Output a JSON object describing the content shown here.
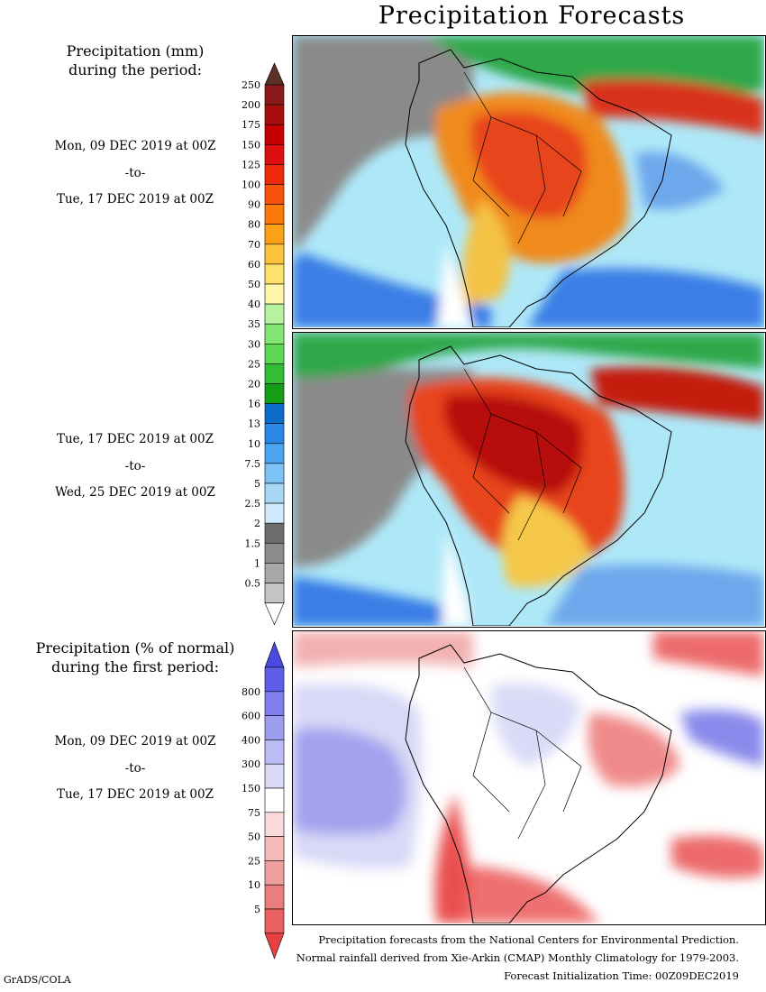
{
  "title": "Precipitation Forecasts",
  "legend_mm": {
    "header_line1": "Precipitation (mm)",
    "header_line2": "during the period:",
    "labels": [
      "250",
      "200",
      "175",
      "150",
      "125",
      "100",
      "90",
      "80",
      "70",
      "60",
      "50",
      "40",
      "35",
      "30",
      "25",
      "20",
      "16",
      "13",
      "10",
      "7.5",
      "5",
      "2.5",
      "2",
      "1.5",
      "1",
      "0.5"
    ],
    "colors": [
      "#8a1a1a",
      "#a80e0e",
      "#c40000",
      "#dd0f0f",
      "#ef2a0a",
      "#f5520a",
      "#fb7a0a",
      "#fca018",
      "#fcc23c",
      "#fde070",
      "#fef6a8",
      "#b6f2a0",
      "#86e674",
      "#5ed854",
      "#32bd32",
      "#159e15",
      "#0d6cc8",
      "#2a88e4",
      "#4ca4f0",
      "#7cc2f4",
      "#a8d8f6",
      "#cfeafa",
      "#6e6e6e",
      "#8c8c8c",
      "#a8a8a8",
      "#c4c4c4"
    ],
    "top_arrow_color": "#5b3027",
    "bottom_arrow_color": "#ffffff"
  },
  "legend_pct": {
    "header_line1": "Precipitation (% of normal)",
    "header_line2": "during the first period:",
    "labels": [
      "800",
      "600",
      "400",
      "300",
      "150",
      "75",
      "50",
      "25",
      "10",
      "5"
    ],
    "colors": [
      "#5e5ee8",
      "#7e7eec",
      "#9e9ef0",
      "#bcbcf4",
      "#dadaf8",
      "#ffffff",
      "#fadada",
      "#f6bcbc",
      "#f09e9e",
      "#ea7e7e",
      "#e86060"
    ],
    "top_arrow_color": "#4a4ae0",
    "bottom_arrow_color": "#e84040"
  },
  "periods": [
    {
      "start": "Mon, 09 DEC 2019 at 00Z",
      "sep": "-to-",
      "end": "Tue, 17 DEC 2019 at 00Z"
    },
    {
      "start": "Tue, 17 DEC 2019 at 00Z",
      "sep": "-to-",
      "end": "Wed, 25 DEC 2019 at 00Z"
    },
    {
      "start": "Mon, 09 DEC 2019 at 00Z",
      "sep": "-to-",
      "end": "Tue, 17 DEC 2019 at 00Z"
    }
  ],
  "footer": {
    "line1": "Precipitation forecasts from the National Centers for Environmental Prediction.",
    "line2": "Normal rainfall derived from Xie-Arkin (CMAP) Monthly Climatology for 1979-2003.",
    "line3": "Forecast Initialization Time: 00Z09DEC2019"
  },
  "credit": "GrADS/COLA"
}
